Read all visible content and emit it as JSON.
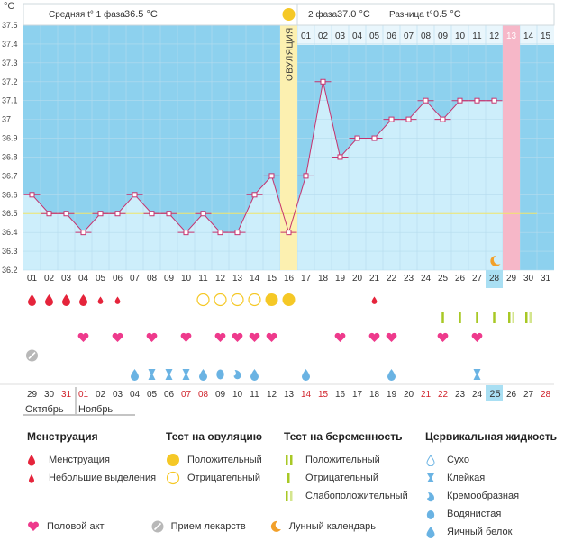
{
  "header": {
    "unit": "°C",
    "phase1_label": "Средняя t° 1 фаза",
    "phase1_value": "36.5 °C",
    "phase2_label": "2 фаза",
    "phase2_value": "37.0 °C",
    "diff_label": "Разница t°",
    "diff_value": "0.5 °C",
    "ovulation_label": "ОВУЛЯЦИЯ"
  },
  "chart_data": {
    "type": "line",
    "y_ticks": [
      "37.5",
      "37.4",
      "37.3",
      "37.2",
      "37.1",
      "37",
      "36.9",
      "36.8",
      "36.7",
      "36.6",
      "36.5",
      "36.4",
      "36.3",
      "36.2"
    ],
    "ylim": [
      36.2,
      37.5
    ],
    "cycle_days": [
      "01",
      "02",
      "03",
      "04",
      "05",
      "06",
      "07",
      "08",
      "09",
      "10",
      "11",
      "12",
      "13",
      "14",
      "15",
      "16",
      "17",
      "18",
      "19",
      "20",
      "21",
      "22",
      "23",
      "24",
      "25",
      "26",
      "27",
      "28",
      "29",
      "30",
      "31"
    ],
    "temperatures": [
      36.6,
      36.5,
      36.5,
      36.4,
      36.5,
      36.5,
      36.6,
      36.5,
      36.5,
      36.4,
      36.5,
      36.4,
      36.4,
      36.6,
      36.7,
      36.4,
      36.7,
      37.2,
      36.8,
      36.9,
      36.9,
      37.0,
      37.0,
      37.1,
      37.0,
      37.1,
      37.1,
      37.1,
      null,
      null,
      null
    ],
    "coverline": 36.5,
    "ovulation_day": "16",
    "current_day": "28",
    "predicted_period_day": "29",
    "post_ovulation_days": [
      "01",
      "02",
      "03",
      "04",
      "05",
      "06",
      "07",
      "08",
      "09",
      "10",
      "11",
      "12",
      "13",
      "14",
      "15"
    ],
    "dates": [
      "29",
      "30",
      "31",
      "01",
      "02",
      "03",
      "04",
      "05",
      "06",
      "07",
      "08",
      "09",
      "10",
      "11",
      "12",
      "13",
      "14",
      "15",
      "16",
      "17",
      "18",
      "19",
      "20",
      "21",
      "22",
      "23",
      "24",
      "25",
      "26",
      "27",
      "28"
    ],
    "red_date_indices": [
      2,
      3,
      9,
      10,
      16,
      17,
      23,
      24,
      30
    ],
    "months": [
      "Октябрь",
      "Ноябрь"
    ]
  },
  "rows": {
    "menstruation": [
      "big",
      "big",
      "big",
      "big",
      "small",
      "small",
      null,
      null,
      null,
      null,
      null,
      null,
      null,
      null,
      null,
      null,
      null,
      null,
      null,
      null,
      "small",
      null,
      null,
      null,
      null,
      null,
      null,
      null,
      null,
      null,
      null
    ],
    "ovulation_test": [
      null,
      null,
      null,
      null,
      null,
      null,
      null,
      null,
      null,
      null,
      "neg",
      "neg",
      "neg",
      "neg",
      "pos",
      "pos",
      null,
      null,
      null,
      null,
      null,
      null,
      null,
      null,
      null,
      null,
      null,
      null,
      null,
      null,
      null
    ],
    "pregnancy_test": [
      null,
      null,
      null,
      null,
      null,
      null,
      null,
      null,
      null,
      null,
      null,
      null,
      null,
      null,
      null,
      null,
      null,
      null,
      null,
      null,
      null,
      null,
      null,
      null,
      "pos",
      "pos",
      "neg",
      "pos",
      "weak",
      "weak",
      null
    ],
    "intercourse": [
      null,
      null,
      null,
      true,
      null,
      true,
      null,
      true,
      null,
      true,
      null,
      true,
      true,
      true,
      true,
      null,
      null,
      null,
      true,
      null,
      true,
      true,
      null,
      null,
      true,
      null,
      true,
      null,
      null,
      null,
      null
    ],
    "medicine": [
      true,
      null,
      null,
      null,
      null,
      null,
      null,
      null,
      null,
      null,
      null,
      null,
      null,
      null,
      null,
      null,
      null,
      null,
      null,
      null,
      null,
      null,
      null,
      null,
      null,
      null,
      null,
      null,
      null,
      null,
      null
    ],
    "cervical": [
      null,
      null,
      null,
      null,
      null,
      null,
      "egg",
      "sticky",
      "sticky",
      "sticky",
      "egg",
      "watery",
      "creamy",
      "egg",
      null,
      null,
      "egg",
      null,
      null,
      null,
      null,
      "egg",
      null,
      null,
      null,
      null,
      "sticky",
      null,
      null,
      null,
      null
    ]
  },
  "legend": {
    "menstruation": {
      "title": "Менструация",
      "items": [
        "Менструация",
        "Небольшие выделения"
      ]
    },
    "ovulation_test": {
      "title": "Тест на овуляцию",
      "items": [
        "Положительный",
        "Отрицательный"
      ]
    },
    "pregnancy_test": {
      "title": "Тест на беременность",
      "items": [
        "Положительный",
        "Отрицательный",
        "Слабоположительный"
      ]
    },
    "cervical": {
      "title": "Цервикальная жидкость",
      "items": [
        "Сухо",
        "Клейкая",
        "Кремообразная",
        "Водянистая",
        "Яичный белок"
      ]
    },
    "bottom": [
      "Половой акт",
      "Прием лекарств",
      "Лунный календарь"
    ]
  },
  "colors": {
    "plot_bg": "#8dd1ee",
    "area_fill": "#cdeefb",
    "line": "#c6326e",
    "ovulation_band": "#fcf0b0",
    "period_band": "#f6b7c8",
    "today_cell": "#a9dff3",
    "menstruation_red": "#e5243b",
    "heart": "#ee3a8c",
    "ovulation_yellow": "#f5c826",
    "pregnancy_green": "#a8c825",
    "cervical_blue": "#6ab3e3",
    "weekend_red": "#d0222b"
  }
}
